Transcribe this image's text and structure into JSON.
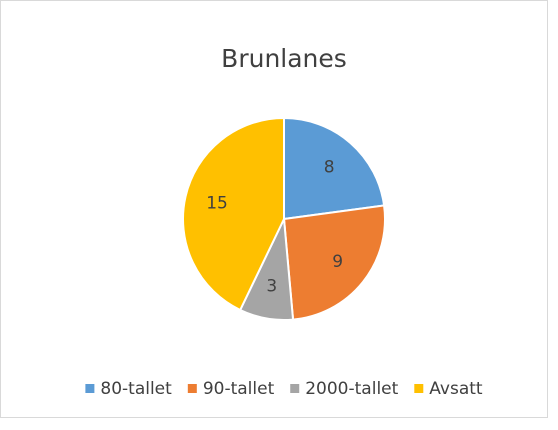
{
  "chart_data": {
    "type": "pie",
    "title": "Brunlanes",
    "categories": [
      "80-tallet",
      "90-tallet",
      "2000-tallet",
      "Avsatt"
    ],
    "values": [
      8,
      9,
      3,
      15
    ],
    "colors": [
      "#5b9bd5",
      "#ed7d31",
      "#a5a5a5",
      "#ffc000"
    ],
    "legend": "bottom"
  }
}
